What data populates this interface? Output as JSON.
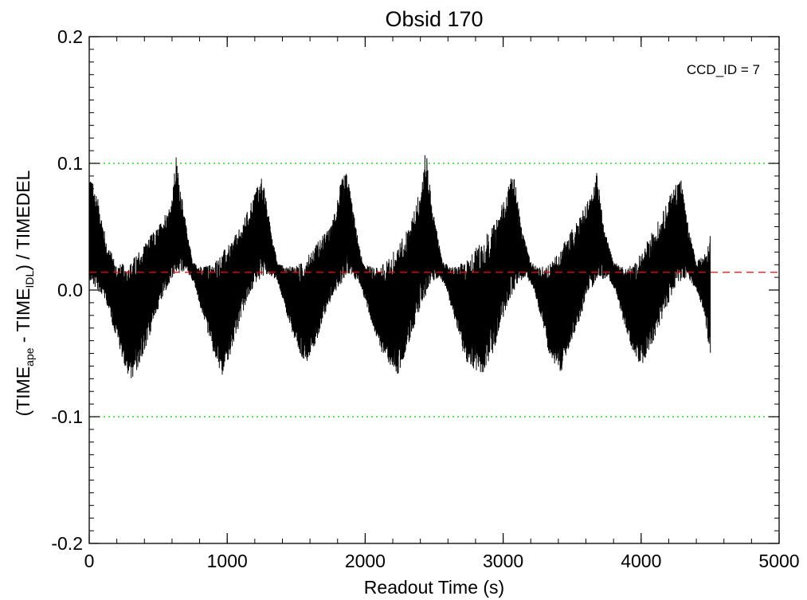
{
  "chart_data": {
    "type": "line",
    "title": "Obsid 170",
    "annotation": "CCD_ID = 7",
    "xlabel": "Readout Time (s)",
    "ylabel": {
      "parts": [
        {
          "text": "(TIME",
          "sub": false
        },
        {
          "text": "ape",
          "sub": true
        },
        {
          "text": " - TIME",
          "sub": false
        },
        {
          "text": "IDL",
          "sub": true
        },
        {
          "text": ") / TIMEDEL",
          "sub": false
        }
      ]
    },
    "xlim": [
      0,
      5000
    ],
    "ylim": [
      -0.2,
      0.2
    ],
    "x_ticks": [
      {
        "value": 0,
        "label": "0"
      },
      {
        "value": 1000,
        "label": "1000"
      },
      {
        "value": 2000,
        "label": "2000"
      },
      {
        "value": 3000,
        "label": "3000"
      },
      {
        "value": 4000,
        "label": "4000"
      },
      {
        "value": 5000,
        "label": "5000"
      }
    ],
    "y_ticks": [
      {
        "value": -0.2,
        "label": "-0.2"
      },
      {
        "value": -0.1,
        "label": "-0.1"
      },
      {
        "value": 0.0,
        "label": "0.0"
      },
      {
        "value": 0.1,
        "label": "0.1"
      },
      {
        "value": 0.2,
        "label": "0.2"
      }
    ],
    "x_minor_step": 200,
    "y_minor_step": 0.01,
    "grid": false,
    "series": [
      {
        "color": "#000000",
        "style": "solid",
        "envelope_upper": [
          [
            0,
            0.092
          ],
          [
            60,
            0.075
          ],
          [
            120,
            0.04
          ],
          [
            200,
            0.02
          ],
          [
            300,
            0.022
          ],
          [
            400,
            0.038
          ],
          [
            500,
            0.05
          ],
          [
            600,
            0.072
          ],
          [
            630,
            0.106
          ],
          [
            680,
            0.065
          ],
          [
            750,
            0.022
          ],
          [
            820,
            0.018
          ],
          [
            900,
            0.022
          ],
          [
            1000,
            0.035
          ],
          [
            1100,
            0.05
          ],
          [
            1200,
            0.078
          ],
          [
            1250,
            0.09
          ],
          [
            1300,
            0.06
          ],
          [
            1360,
            0.022
          ],
          [
            1430,
            0.018
          ],
          [
            1550,
            0.022
          ],
          [
            1650,
            0.038
          ],
          [
            1750,
            0.05
          ],
          [
            1830,
            0.088
          ],
          [
            1870,
            0.094
          ],
          [
            1930,
            0.05
          ],
          [
            1980,
            0.022
          ],
          [
            2050,
            0.018
          ],
          [
            2150,
            0.022
          ],
          [
            2250,
            0.038
          ],
          [
            2330,
            0.055
          ],
          [
            2410,
            0.085
          ],
          [
            2440,
            0.115
          ],
          [
            2480,
            0.07
          ],
          [
            2560,
            0.022
          ],
          [
            2630,
            0.018
          ],
          [
            2720,
            0.022
          ],
          [
            2850,
            0.04
          ],
          [
            2950,
            0.055
          ],
          [
            3040,
            0.085
          ],
          [
            3080,
            0.094
          ],
          [
            3130,
            0.05
          ],
          [
            3200,
            0.022
          ],
          [
            3270,
            0.018
          ],
          [
            3350,
            0.022
          ],
          [
            3450,
            0.04
          ],
          [
            3560,
            0.06
          ],
          [
            3650,
            0.078
          ],
          [
            3680,
            0.094
          ],
          [
            3730,
            0.05
          ],
          [
            3800,
            0.022
          ],
          [
            3880,
            0.018
          ],
          [
            3960,
            0.022
          ],
          [
            4050,
            0.04
          ],
          [
            4150,
            0.06
          ],
          [
            4250,
            0.085
          ],
          [
            4290,
            0.088
          ],
          [
            4340,
            0.05
          ],
          [
            4400,
            0.022
          ],
          [
            4470,
            0.03
          ],
          [
            4510,
            0.05
          ]
        ],
        "envelope_lower": [
          [
            0,
            0.005
          ],
          [
            60,
            0.0
          ],
          [
            120,
            -0.01
          ],
          [
            200,
            -0.04
          ],
          [
            300,
            -0.075
          ],
          [
            400,
            -0.05
          ],
          [
            480,
            -0.02
          ],
          [
            560,
            0.0
          ],
          [
            620,
            0.012
          ],
          [
            700,
            0.015
          ],
          [
            760,
            0.005
          ],
          [
            820,
            -0.02
          ],
          [
            900,
            -0.05
          ],
          [
            960,
            -0.068
          ],
          [
            1040,
            -0.045
          ],
          [
            1120,
            -0.015
          ],
          [
            1200,
            0.005
          ],
          [
            1280,
            0.012
          ],
          [
            1360,
            0.008
          ],
          [
            1420,
            -0.015
          ],
          [
            1500,
            -0.045
          ],
          [
            1560,
            -0.06
          ],
          [
            1650,
            -0.04
          ],
          [
            1720,
            -0.015
          ],
          [
            1800,
            0.002
          ],
          [
            1880,
            0.012
          ],
          [
            1960,
            0.005
          ],
          [
            2030,
            -0.02
          ],
          [
            2120,
            -0.05
          ],
          [
            2240,
            -0.068
          ],
          [
            2320,
            -0.04
          ],
          [
            2400,
            -0.015
          ],
          [
            2470,
            0.005
          ],
          [
            2540,
            0.01
          ],
          [
            2590,
            0.0
          ],
          [
            2650,
            -0.025
          ],
          [
            2720,
            -0.055
          ],
          [
            2850,
            -0.07
          ],
          [
            2940,
            -0.045
          ],
          [
            3020,
            -0.015
          ],
          [
            3100,
            0.005
          ],
          [
            3170,
            0.01
          ],
          [
            3220,
            0.0
          ],
          [
            3280,
            -0.025
          ],
          [
            3340,
            -0.055
          ],
          [
            3420,
            -0.065
          ],
          [
            3500,
            -0.04
          ],
          [
            3580,
            -0.015
          ],
          [
            3660,
            0.005
          ],
          [
            3750,
            0.01
          ],
          [
            3810,
            0.0
          ],
          [
            3870,
            -0.025
          ],
          [
            3940,
            -0.05
          ],
          [
            4000,
            -0.06
          ],
          [
            4090,
            -0.04
          ],
          [
            4180,
            -0.015
          ],
          [
            4260,
            0.005
          ],
          [
            4330,
            0.01
          ],
          [
            4400,
            0.0
          ],
          [
            4460,
            -0.02
          ],
          [
            4500,
            -0.055
          ]
        ]
      },
      {
        "color": "#ff0000",
        "style": "dashed",
        "x": [
          0,
          5000
        ],
        "y": [
          0.014,
          0.014
        ]
      },
      {
        "color": "#00cc00",
        "style": "dotted",
        "x": [
          0,
          5000
        ],
        "y": [
          0.1,
          0.1
        ]
      },
      {
        "color": "#00cc00",
        "style": "dotted",
        "x": [
          0,
          5000
        ],
        "y": [
          -0.1,
          -0.1
        ]
      }
    ]
  }
}
